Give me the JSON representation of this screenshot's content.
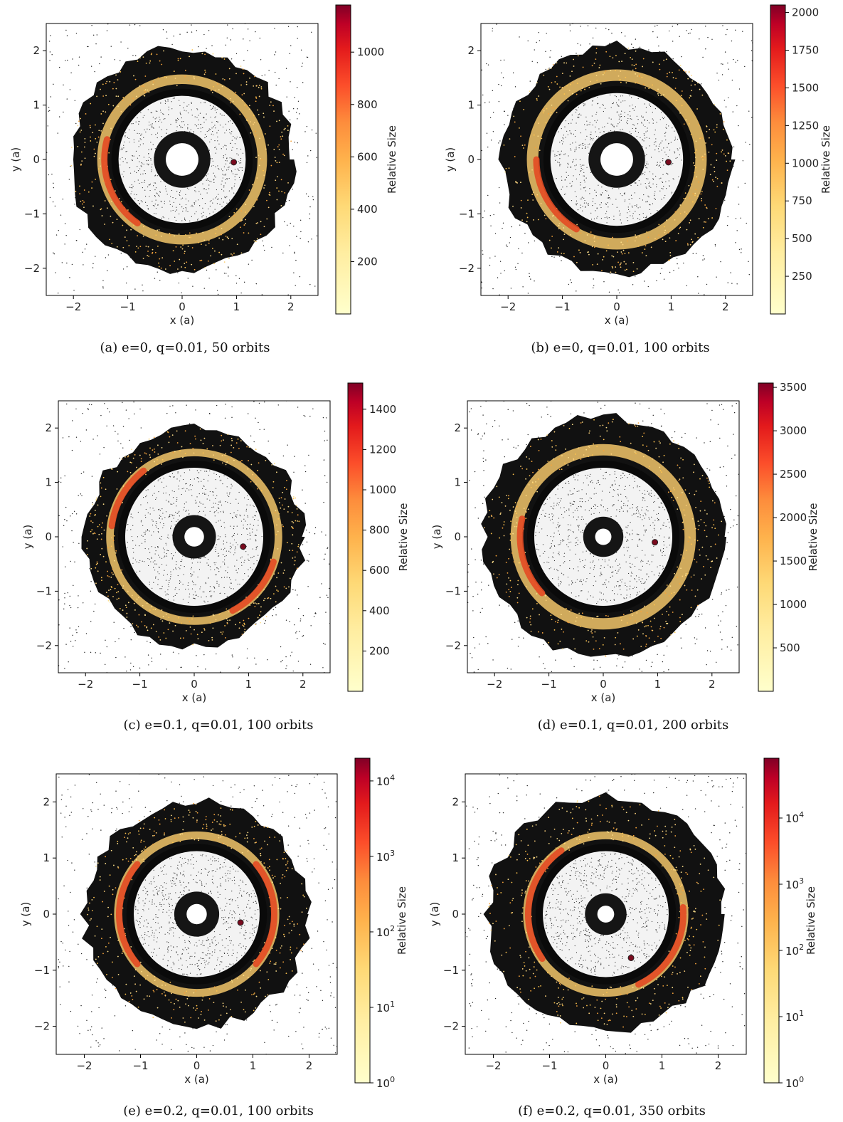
{
  "figure": {
    "panels": [
      {
        "caption": "(a) e=0, q=0.01, 50 orbits",
        "colorbar": {
          "label": "Relative Size",
          "scale": "linear",
          "range": [
            0,
            1180
          ],
          "ticks": [
            200,
            400,
            600,
            800,
            1000
          ]
        },
        "chart_data": {
          "type": "scatter",
          "xlabel": "x (a)",
          "ylabel": "y (a)",
          "xlim": [
            -2.5,
            2.5
          ],
          "ylim": [
            -2.5,
            2.5
          ],
          "xticks": [
            -2,
            -1,
            0,
            1,
            2
          ],
          "yticks": [
            -2,
            -1,
            0,
            1,
            2
          ],
          "disk": {
            "inner_cavity_radius": 0.3,
            "gap_inner": 1.35,
            "gap_outer": 1.6,
            "outer_edge": 2.05,
            "gap_opening_phase": 0.0
          },
          "planet": {
            "x": 0.95,
            "y": -0.05
          },
          "high_size_arcs": [
            {
              "center_angle_deg": 200,
              "width_deg": 70
            }
          ]
        }
      },
      {
        "caption": "(b) e=0, q=0.01, 100 orbits",
        "colorbar": {
          "label": "Relative Size",
          "scale": "linear",
          "range": [
            0,
            2050
          ],
          "ticks": [
            250,
            500,
            750,
            1000,
            1250,
            1500,
            1750,
            2000
          ]
        },
        "chart_data": {
          "type": "scatter",
          "xlabel": "x (a)",
          "ylabel": "y (a)",
          "xlim": [
            -2.5,
            2.5
          ],
          "ylim": [
            -2.5,
            2.5
          ],
          "xticks": [
            -2,
            -1,
            0,
            1,
            2
          ],
          "yticks": [
            -2,
            -1,
            0,
            1,
            2
          ],
          "disk": {
            "inner_cavity_radius": 0.3,
            "gap_inner": 1.4,
            "gap_outer": 1.7,
            "outer_edge": 2.1,
            "gap_opening_phase": 0.0
          },
          "planet": {
            "x": 0.95,
            "y": -0.05
          },
          "high_size_arcs": [
            {
              "center_angle_deg": 210,
              "width_deg": 60
            }
          ]
        }
      },
      {
        "caption": "(c) e=0.1, q=0.01, 100 orbits",
        "colorbar": {
          "label": "Relative Size",
          "scale": "linear",
          "range": [
            0,
            1530
          ],
          "ticks": [
            200,
            400,
            600,
            800,
            1000,
            1200,
            1400
          ]
        },
        "chart_data": {
          "type": "scatter",
          "xlabel": "x (a)",
          "ylabel": "y (a)",
          "xlim": [
            -2.5,
            2.5
          ],
          "ylim": [
            -2.5,
            2.5
          ],
          "xticks": [
            -2,
            -1,
            0,
            1,
            2
          ],
          "yticks": [
            -2,
            -1,
            0,
            1,
            2
          ],
          "disk": {
            "inner_cavity_radius": 0.18,
            "gap_inner": 1.45,
            "gap_outer": 1.65,
            "outer_edge": 2.0,
            "gap_opening_phase": 0.0
          },
          "planet": {
            "x": 0.9,
            "y": -0.18
          },
          "high_size_arcs": [
            {
              "center_angle_deg": 150,
              "width_deg": 45
            },
            {
              "center_angle_deg": 320,
              "width_deg": 45
            }
          ]
        }
      },
      {
        "caption": "(d) e=0.1, q=0.01, 200 orbits",
        "colorbar": {
          "label": "Relative Size",
          "scale": "linear",
          "range": [
            0,
            3550
          ],
          "ticks": [
            500,
            1000,
            1500,
            2000,
            2500,
            3000,
            3500
          ]
        },
        "chart_data": {
          "type": "scatter",
          "xlabel": "x (a)",
          "ylabel": "y (a)",
          "xlim": [
            -2.5,
            2.5
          ],
          "ylim": [
            -2.5,
            2.5
          ],
          "xticks": [
            -2,
            -1,
            0,
            1,
            2
          ],
          "yticks": [
            -2,
            -1,
            0,
            1,
            2
          ],
          "disk": {
            "inner_cavity_radius": 0.15,
            "gap_inner": 1.45,
            "gap_outer": 1.75,
            "outer_edge": 2.2,
            "gap_opening_phase": 0.0
          },
          "planet": {
            "x": 0.95,
            "y": -0.1
          },
          "high_size_arcs": [
            {
              "center_angle_deg": 195,
              "width_deg": 55
            }
          ]
        }
      },
      {
        "caption": "(e) e=0.2, q=0.01, 100 orbits",
        "colorbar": {
          "label": "Relative Size",
          "scale": "log",
          "range": [
            1,
            20000
          ],
          "ticks": [
            {
              "exp": "0"
            },
            {
              "exp": "1"
            },
            {
              "exp": "2"
            },
            {
              "exp": "3"
            },
            {
              "exp": "4"
            }
          ]
        },
        "chart_data": {
          "type": "scatter",
          "xlabel": "x (a)",
          "ylabel": "y (a)",
          "xlim": [
            -2.5,
            2.5
          ],
          "ylim": [
            -2.5,
            2.5
          ],
          "xticks": [
            -2,
            -1,
            0,
            1,
            2
          ],
          "yticks": [
            -2,
            -1,
            0,
            1,
            2
          ],
          "disk": {
            "inner_cavity_radius": 0.18,
            "gap_inner": 1.3,
            "gap_outer": 1.5,
            "outer_edge": 2.0,
            "gap_opening_phase": 0.0
          },
          "planet": {
            "x": 0.78,
            "y": -0.15
          },
          "high_size_arcs": [
            {
              "center_angle_deg": 180,
              "width_deg": 80
            },
            {
              "center_angle_deg": 0,
              "width_deg": 80
            }
          ]
        }
      },
      {
        "caption": "(f) e=0.2, q=0.01, 350 orbits",
        "colorbar": {
          "label": "Relative Size",
          "scale": "log",
          "range": [
            1,
            80000
          ],
          "ticks": [
            {
              "exp": "0"
            },
            {
              "exp": "1"
            },
            {
              "exp": "2"
            },
            {
              "exp": "3"
            },
            {
              "exp": "4"
            }
          ]
        },
        "chart_data": {
          "type": "scatter",
          "xlabel": "x (a)",
          "ylabel": "y (a)",
          "xlim": [
            -2.5,
            2.5
          ],
          "ylim": [
            -2.5,
            2.5
          ],
          "xticks": [
            -2,
            -1,
            0,
            1,
            2
          ],
          "yticks": [
            -2,
            -1,
            0,
            1,
            2
          ],
          "disk": {
            "inner_cavity_radius": 0.15,
            "gap_inner": 1.3,
            "gap_outer": 1.5,
            "outer_edge": 2.1,
            "gap_opening_phase": 0.0
          },
          "planet": {
            "x": 0.45,
            "y": -0.78
          },
          "high_size_arcs": [
            {
              "center_angle_deg": 170,
              "width_deg": 90
            },
            {
              "center_angle_deg": 330,
              "width_deg": 70
            }
          ]
        }
      }
    ]
  }
}
